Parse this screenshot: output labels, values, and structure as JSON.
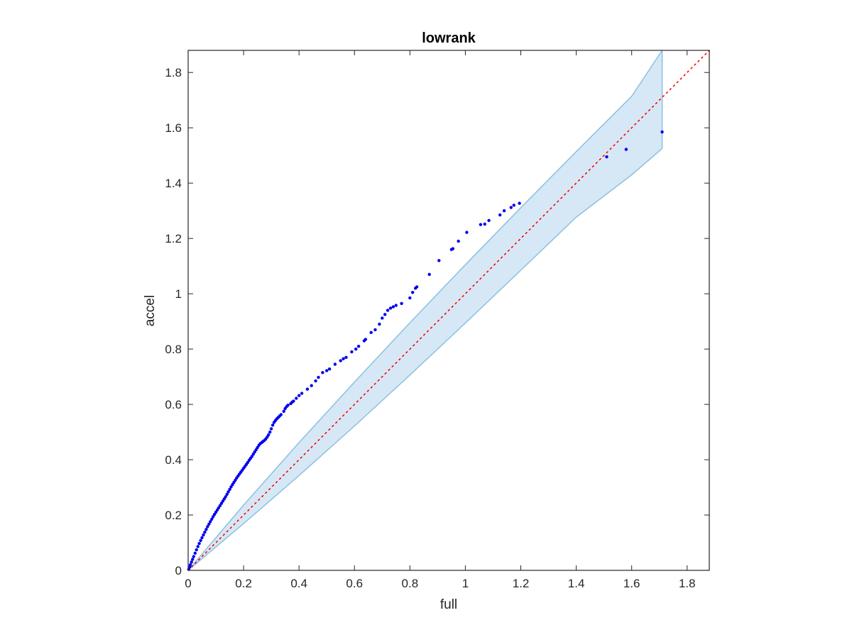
{
  "chart_data": {
    "type": "scatter",
    "title": "lowrank",
    "xlabel": "full",
    "ylabel": "accel",
    "xlim": [
      0,
      1.88
    ],
    "ylim": [
      0,
      1.88
    ],
    "xticks": [
      0,
      0.2,
      0.4,
      0.6,
      0.8,
      1,
      1.2,
      1.4,
      1.6,
      1.8
    ],
    "yticks": [
      0,
      0.2,
      0.4,
      0.6,
      0.8,
      1,
      1.2,
      1.4,
      1.6,
      1.8
    ],
    "xtick_labels": [
      "0",
      "0.2",
      "0.4",
      "0.6",
      "0.8",
      "1",
      "1.2",
      "1.4",
      "1.6",
      "1.8"
    ],
    "ytick_labels": [
      "0",
      "0.2",
      "0.4",
      "0.6",
      "0.8",
      "1",
      "1.2",
      "1.4",
      "1.6",
      "1.8"
    ],
    "grid": false,
    "box": true,
    "colors": {
      "points": "#0000ee",
      "reference_line": "#ff0000",
      "band_fill": "#d6e8f5",
      "band_edge": "#8cc0e0",
      "axes": "#262626"
    },
    "reference_line": {
      "style": "dotted",
      "points": [
        [
          0,
          0
        ],
        [
          1.88,
          1.88
        ]
      ]
    },
    "confidence_band": {
      "x": [
        0,
        0.2,
        0.4,
        0.6,
        0.8,
        1.0,
        1.2,
        1.4,
        1.6,
        1.71
      ],
      "upper": [
        0,
        0.236,
        0.462,
        0.681,
        0.895,
        1.105,
        1.311,
        1.514,
        1.714,
        1.88
      ],
      "lower": [
        0,
        0.169,
        0.343,
        0.522,
        0.706,
        0.894,
        1.085,
        1.277,
        1.43,
        1.525
      ]
    },
    "series": [
      {
        "points": [
          [
            0.002,
            0.004
          ],
          [
            0.005,
            0.012
          ],
          [
            0.008,
            0.02
          ],
          [
            0.012,
            0.03
          ],
          [
            0.016,
            0.04
          ],
          [
            0.02,
            0.05
          ],
          [
            0.025,
            0.062
          ],
          [
            0.03,
            0.074
          ],
          [
            0.035,
            0.086
          ],
          [
            0.04,
            0.097
          ],
          [
            0.045,
            0.108
          ],
          [
            0.05,
            0.118
          ],
          [
            0.055,
            0.128
          ],
          [
            0.06,
            0.138
          ],
          [
            0.065,
            0.148
          ],
          [
            0.07,
            0.158
          ],
          [
            0.075,
            0.167
          ],
          [
            0.08,
            0.176
          ],
          [
            0.085,
            0.185
          ],
          [
            0.09,
            0.194
          ],
          [
            0.095,
            0.202
          ],
          [
            0.1,
            0.21
          ],
          [
            0.105,
            0.218
          ],
          [
            0.11,
            0.226
          ],
          [
            0.115,
            0.234
          ],
          [
            0.12,
            0.242
          ],
          [
            0.125,
            0.25
          ],
          [
            0.13,
            0.258
          ],
          [
            0.135,
            0.266
          ],
          [
            0.14,
            0.275
          ],
          [
            0.145,
            0.284
          ],
          [
            0.15,
            0.293
          ],
          [
            0.155,
            0.302
          ],
          [
            0.16,
            0.31
          ],
          [
            0.165,
            0.318
          ],
          [
            0.17,
            0.326
          ],
          [
            0.175,
            0.334
          ],
          [
            0.18,
            0.341
          ],
          [
            0.185,
            0.348
          ],
          [
            0.19,
            0.355
          ],
          [
            0.195,
            0.362
          ],
          [
            0.2,
            0.369
          ],
          [
            0.205,
            0.376
          ],
          [
            0.21,
            0.383
          ],
          [
            0.215,
            0.39
          ],
          [
            0.22,
            0.398
          ],
          [
            0.225,
            0.405
          ],
          [
            0.23,
            0.412
          ],
          [
            0.235,
            0.42
          ],
          [
            0.24,
            0.428
          ],
          [
            0.245,
            0.436
          ],
          [
            0.25,
            0.444
          ],
          [
            0.255,
            0.452
          ],
          [
            0.26,
            0.458
          ],
          [
            0.265,
            0.462
          ],
          [
            0.27,
            0.466
          ],
          [
            0.275,
            0.47
          ],
          [
            0.28,
            0.475
          ],
          [
            0.285,
            0.482
          ],
          [
            0.29,
            0.49
          ],
          [
            0.295,
            0.5
          ],
          [
            0.3,
            0.512
          ],
          [
            0.305,
            0.525
          ],
          [
            0.31,
            0.535
          ],
          [
            0.315,
            0.542
          ],
          [
            0.32,
            0.548
          ],
          [
            0.325,
            0.553
          ],
          [
            0.33,
            0.558
          ],
          [
            0.335,
            0.563
          ],
          [
            0.345,
            0.575
          ],
          [
            0.35,
            0.585
          ],
          [
            0.355,
            0.592
          ],
          [
            0.36,
            0.597
          ],
          [
            0.37,
            0.603
          ],
          [
            0.375,
            0.608
          ],
          [
            0.38,
            0.612
          ],
          [
            0.39,
            0.622
          ],
          [
            0.4,
            0.632
          ],
          [
            0.41,
            0.64
          ],
          [
            0.43,
            0.655
          ],
          [
            0.445,
            0.668
          ],
          [
            0.46,
            0.685
          ],
          [
            0.47,
            0.698
          ],
          [
            0.485,
            0.715
          ],
          [
            0.5,
            0.722
          ],
          [
            0.51,
            0.728
          ],
          [
            0.53,
            0.745
          ],
          [
            0.55,
            0.758
          ],
          [
            0.56,
            0.765
          ],
          [
            0.57,
            0.77
          ],
          [
            0.59,
            0.79
          ],
          [
            0.605,
            0.8
          ],
          [
            0.615,
            0.81
          ],
          [
            0.635,
            0.83
          ],
          [
            0.64,
            0.835
          ],
          [
            0.66,
            0.86
          ],
          [
            0.675,
            0.87
          ],
          [
            0.69,
            0.89
          ],
          [
            0.7,
            0.912
          ],
          [
            0.71,
            0.925
          ],
          [
            0.72,
            0.94
          ],
          [
            0.73,
            0.948
          ],
          [
            0.74,
            0.953
          ],
          [
            0.75,
            0.958
          ],
          [
            0.77,
            0.965
          ],
          [
            0.8,
            0.985
          ],
          [
            0.81,
            1.005
          ],
          [
            0.82,
            1.02
          ],
          [
            0.825,
            1.025
          ],
          [
            0.87,
            1.07
          ],
          [
            0.905,
            1.12
          ],
          [
            0.95,
            1.16
          ],
          [
            0.955,
            1.163
          ],
          [
            0.975,
            1.19
          ],
          [
            1.005,
            1.222
          ],
          [
            1.055,
            1.25
          ],
          [
            1.07,
            1.252
          ],
          [
            1.085,
            1.265
          ],
          [
            1.125,
            1.285
          ],
          [
            1.14,
            1.3
          ],
          [
            1.165,
            1.312
          ],
          [
            1.175,
            1.32
          ],
          [
            1.195,
            1.327
          ],
          [
            1.51,
            1.495
          ],
          [
            1.58,
            1.522
          ],
          [
            1.71,
            1.585
          ]
        ]
      }
    ]
  }
}
